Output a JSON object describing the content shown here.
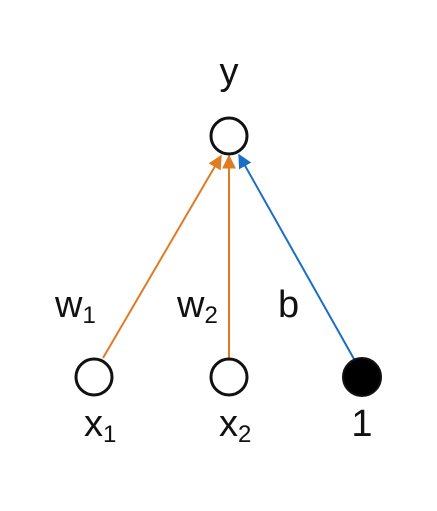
{
  "diagram": {
    "output_label": "y",
    "inputs": [
      {
        "label": "x",
        "subscript": "1",
        "weight_label": "w",
        "weight_subscript": "1"
      },
      {
        "label": "x",
        "subscript": "2",
        "weight_label": "w",
        "weight_subscript": "2"
      }
    ],
    "bias": {
      "label": "1",
      "weight_label": "b"
    }
  },
  "colors": {
    "weight": "#e07b24",
    "bias": "#1a6fc4",
    "node_stroke": "#111111",
    "bias_fill": "#000000"
  }
}
